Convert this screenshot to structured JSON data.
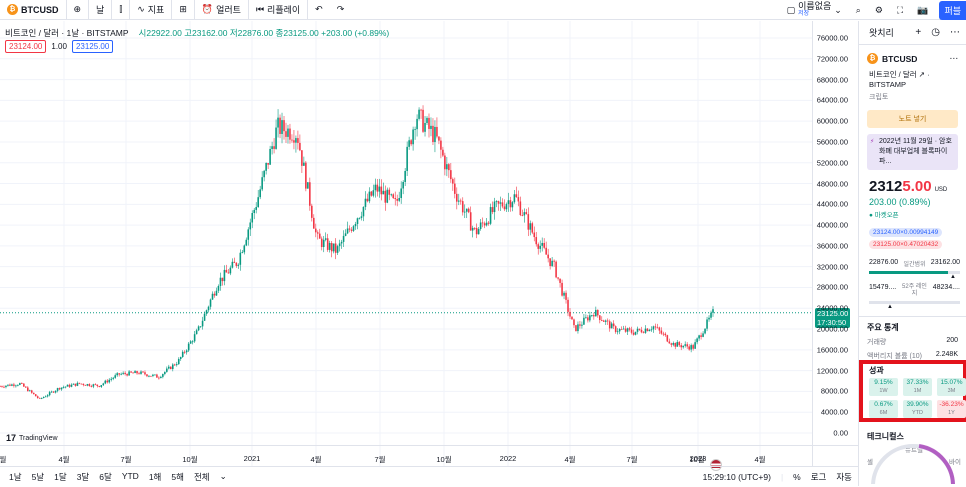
{
  "topbar": {
    "symbol": "BTCUSD",
    "interval": "날",
    "indicators": "지표",
    "alert": "얼러트",
    "replay": "리플레이",
    "layout_name": "이름없음",
    "layout_sub": "저장",
    "publish": "퍼블"
  },
  "legend": {
    "title": "비트코인 / 달러 · 1날 · BITSTAMP",
    "open": "시22922.00",
    "high": "고23162.00",
    "low": "저22876.00",
    "close": "종23125.00",
    "change": "+203.00 (+0.89%)",
    "sell_box": "23124.00",
    "spread": "1.00",
    "buy_box": "23125.00"
  },
  "yaxis": {
    "ticks": [
      "76000.00",
      "72000.00",
      "68000.00",
      "64000.00",
      "60000.00",
      "56000.00",
      "52000.00",
      "48000.00",
      "44000.00",
      "40000.00",
      "36000.00",
      "32000.00",
      "28000.00",
      "24000.00",
      "20000.00",
      "16000.00",
      "12000.00",
      "8000.00",
      "4000.00",
      "0.00"
    ],
    "current_price": "23125.00",
    "countdown": "17:30:50"
  },
  "xaxis": {
    "ticks": [
      "월",
      "4월",
      "7월",
      "10월",
      "2021",
      "4월",
      "7월",
      "10월",
      "2022",
      "4월",
      "7월",
      "10월",
      "2023",
      "4월"
    ]
  },
  "bottombar": {
    "ranges": [
      "1날",
      "5날",
      "1달",
      "3달",
      "6달",
      "YTD",
      "1해",
      "5해",
      "전체"
    ],
    "time": "15:29:10 (UTC+9)",
    "percent": "%",
    "log": "로그",
    "auto": "자동"
  },
  "tradingview_logo": "TradingView",
  "panel": {
    "watchlist": "왓치리",
    "symbol": "BTCUSD",
    "description": "비트코인 / 달러 ↗ · BITSTAMP",
    "category": "크립토",
    "note_button": "노트 넣기",
    "news": "2022년 11월 29일 · 암호화폐 대부업체 블록파이 파...",
    "price_int": "2312",
    "price_dec": "5.00",
    "currency": "USD",
    "change": "203.00 (0.89%)",
    "market_status": "● 마켓오픈",
    "bid": "23124.00×0.00994149",
    "ask": "23125.00×0.47020432",
    "day_low": "22876.00",
    "day_range_label": "일간범위",
    "day_high": "23162.00",
    "week_low": "15479....",
    "week_range_label": "52주 레인지",
    "week_high": "48234....",
    "day_range_fill": 0.87,
    "stats_title": "주요 통계",
    "volume_label": "거래량",
    "volume_value": "200",
    "avg_volume_label": "액버리지 볼륨 (10)",
    "avg_volume_value": "2.248K",
    "perf_title": "성과",
    "perf": [
      {
        "value": "9.15%",
        "label": "1W",
        "dir": "up"
      },
      {
        "value": "37.33%",
        "label": "1M",
        "dir": "up"
      },
      {
        "value": "15.07%",
        "label": "3M",
        "dir": "up"
      },
      {
        "value": "0.67%",
        "label": "6M",
        "dir": "up"
      },
      {
        "value": "39.90%",
        "label": "YTD",
        "dir": "up"
      },
      {
        "value": "-36.23%",
        "label": "1Y",
        "dir": "dn"
      }
    ],
    "tech_title": "테크니컬스",
    "gauge_neutral": "뉴트럴",
    "gauge_sell": "셀",
    "gauge_buy": "바이"
  },
  "colors": {
    "up": "#089981",
    "down": "#f23645",
    "accent": "#2962ff",
    "highlight": "#e3131c"
  },
  "chart_data": {
    "type": "candlestick",
    "symbol": "BTCUSD",
    "interval": "1D",
    "ylim": [
      0,
      76000
    ],
    "x_start": "2020-01",
    "x_end": "2023-06",
    "series": [
      {
        "date": "2020-01",
        "close": 9000
      },
      {
        "date": "2020-02",
        "close": 9500
      },
      {
        "date": "2020-03",
        "close": 6500
      },
      {
        "date": "2020-04",
        "close": 8700
      },
      {
        "date": "2020-05",
        "close": 9500
      },
      {
        "date": "2020-06",
        "close": 9100
      },
      {
        "date": "2020-07",
        "close": 11300
      },
      {
        "date": "2020-08",
        "close": 11600
      },
      {
        "date": "2020-09",
        "close": 10800
      },
      {
        "date": "2020-10",
        "close": 13800
      },
      {
        "date": "2020-11",
        "close": 19700
      },
      {
        "date": "2020-12",
        "close": 29000
      },
      {
        "date": "2021-01",
        "close": 33000
      },
      {
        "date": "2021-02",
        "close": 45000
      },
      {
        "date": "2021-03",
        "close": 58800
      },
      {
        "date": "2021-04",
        "close": 57700
      },
      {
        "date": "2021-05",
        "close": 37300
      },
      {
        "date": "2021-06",
        "close": 35000
      },
      {
        "date": "2021-07",
        "close": 41500
      },
      {
        "date": "2021-08",
        "close": 47100
      },
      {
        "date": "2021-09",
        "close": 43800
      },
      {
        "date": "2021-10",
        "close": 61300
      },
      {
        "date": "2021-11",
        "close": 57000
      },
      {
        "date": "2021-12",
        "close": 46300
      },
      {
        "date": "2022-01",
        "close": 38500
      },
      {
        "date": "2022-02",
        "close": 43200
      },
      {
        "date": "2022-03",
        "close": 45500
      },
      {
        "date": "2022-04",
        "close": 37700
      },
      {
        "date": "2022-05",
        "close": 31800
      },
      {
        "date": "2022-06",
        "close": 19900
      },
      {
        "date": "2022-07",
        "close": 23300
      },
      {
        "date": "2022-08",
        "close": 20000
      },
      {
        "date": "2022-09",
        "close": 19400
      },
      {
        "date": "2022-10",
        "close": 20500
      },
      {
        "date": "2022-11",
        "close": 17100
      },
      {
        "date": "2022-12",
        "close": 16500
      },
      {
        "date": "2023-01",
        "close": 23125
      }
    ]
  }
}
